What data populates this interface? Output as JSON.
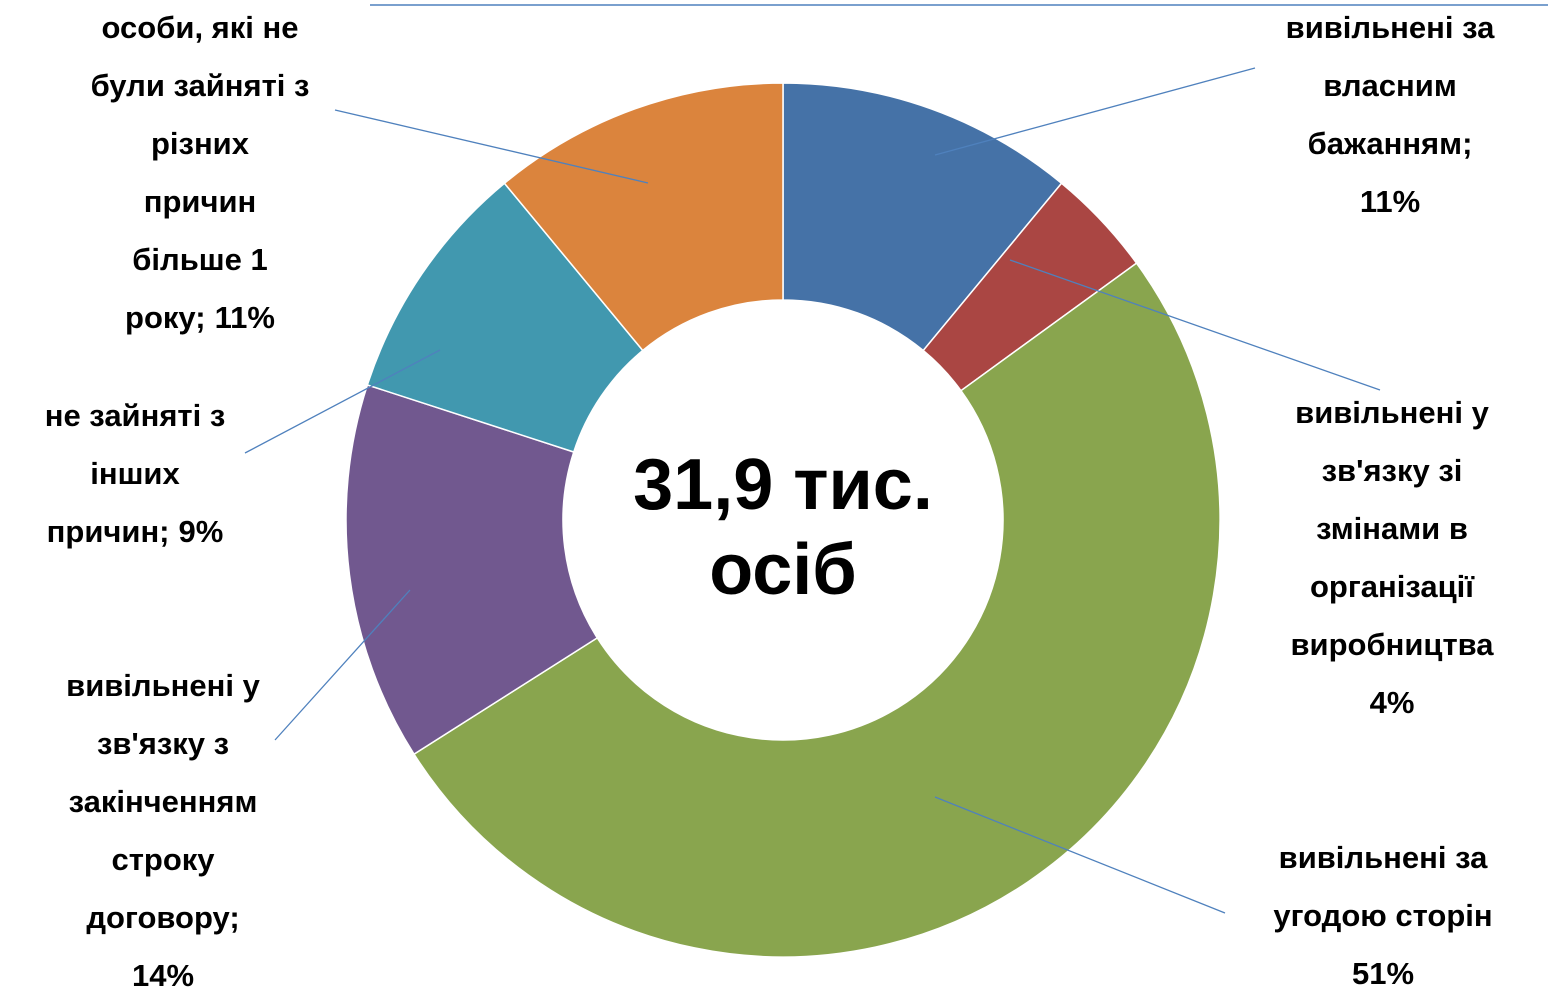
{
  "chart_data": {
    "type": "donut",
    "categories": [
      [
        "вивільнені за",
        "власним",
        "бажанням;"
      ],
      [
        "вивільнені у",
        "зв'язку зі",
        "змінами в",
        "організації",
        "виробництва"
      ],
      [
        "вивільнені за",
        "угодою сторін"
      ],
      [
        "вивільнені у",
        "зв'язку з",
        "закінченням",
        "строку",
        "договору;"
      ],
      [
        "не зайняті з",
        "інших",
        "причин;"
      ],
      [
        "особи, які не",
        "були зайняті з",
        "різних",
        "причин",
        "більше 1",
        "року;"
      ]
    ],
    "values": [
      11,
      4,
      51,
      14,
      9,
      11
    ],
    "value_labels": [
      "11%",
      "4%",
      "51%",
      "14%",
      "9%",
      "11%"
    ],
    "colors": [
      "#4572a7",
      "#aa4643",
      "#89a54e",
      "#71588f",
      "#4198af",
      "#db843d"
    ],
    "center_label": [
      "31,9 тис.",
      "осіб"
    ]
  }
}
